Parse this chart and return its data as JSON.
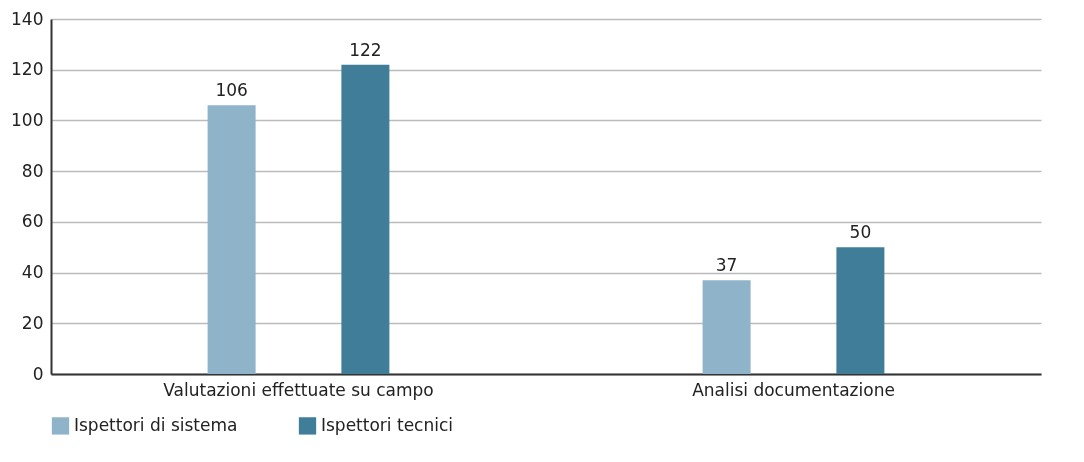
{
  "chart_data": {
    "type": "bar",
    "categories": [
      "Valutazioni effettuate su campo",
      "Analisi documentazione"
    ],
    "series": [
      {
        "name": "Ispettori di sistema",
        "color": "#8fb3c8",
        "values": [
          106,
          37
        ]
      },
      {
        "name": "Ispettori tecnici",
        "color": "#3f7d98",
        "values": [
          122,
          50
        ]
      }
    ],
    "ylim": [
      0,
      140
    ],
    "yticks": [
      0,
      20,
      40,
      60,
      80,
      100,
      120,
      140
    ],
    "grid": "y",
    "legend": "bottom",
    "data_labels": true
  }
}
